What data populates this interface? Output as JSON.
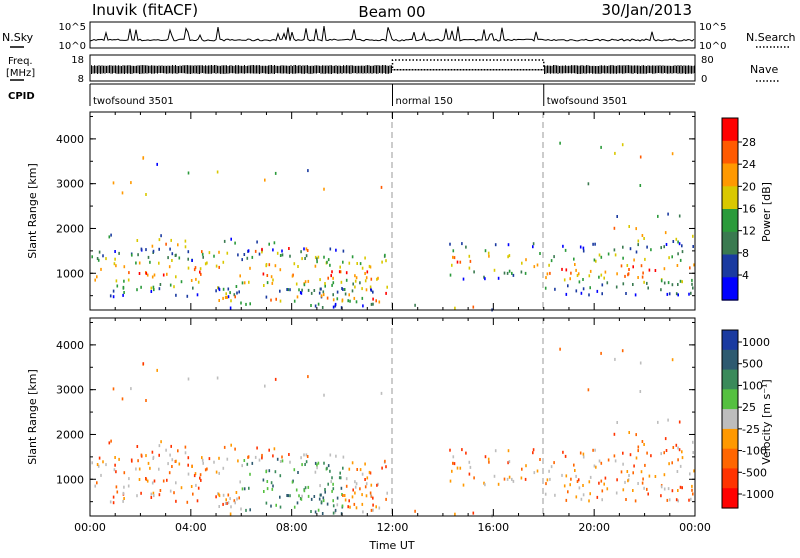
{
  "header": {
    "station": "Inuvik (fitACF)",
    "beam": "Beam 00",
    "date": "30/Jan/2013"
  },
  "top_panels": {
    "nsky_label": "N.Sky",
    "nsky_ticks": [
      "10^5",
      "10^0"
    ],
    "nsearch_label": "N.Search",
    "nsearch_ticks": [
      "10^5",
      "10^0"
    ],
    "freq_label_1": "Freq.",
    "freq_label_2": "[MHz]",
    "freq_ticks": [
      "18",
      "8"
    ],
    "nave_label": "Nave",
    "nave_ticks": [
      "80",
      "0"
    ],
    "cpid_label": "CPID",
    "cpid_segments": [
      {
        "name": "twofsound 3501",
        "start": 0,
        "end": 12
      },
      {
        "name": "normal 150",
        "start": 12,
        "end": 18
      },
      {
        "name": "twofsound 3501",
        "start": 18,
        "end": 24
      }
    ]
  },
  "chart_data": [
    {
      "type": "heatmap",
      "title": "",
      "ylabel": "Slant Range [km]",
      "ylim": [
        180,
        4600
      ],
      "xlim": [
        0,
        24
      ],
      "yticks": [
        "1000",
        "2000",
        "3000",
        "4000"
      ],
      "colorbar_label": "Power [dB]",
      "colorbar_ticks": [
        "28",
        "24",
        "20",
        "16",
        "12",
        "8",
        "4"
      ],
      "colorbar_colors": [
        "#ff0000",
        "#ff5a00",
        "#ff9900",
        "#d9c800",
        "#2a9a3a",
        "#3a7a50",
        "#1a3aa0",
        "#0000ff"
      ]
    },
    {
      "type": "heatmap",
      "title": "",
      "ylabel": "Slant Range [km]",
      "ylim": [
        180,
        4600
      ],
      "xlim": [
        0,
        24
      ],
      "yticks": [
        "1000",
        "2000",
        "3000",
        "4000"
      ],
      "xlabel": "Time UT",
      "xticks": [
        "00:00",
        "04:00",
        "08:00",
        "12:00",
        "16:00",
        "20:00",
        "00:00"
      ],
      "colorbar_label": "Velocity [m s⁻¹]",
      "colorbar_ticks": [
        "1000",
        "500",
        "100",
        "25",
        "-25",
        "-100",
        "-500",
        "-1000"
      ],
      "colorbar_colors": [
        "#1a3aa0",
        "#2e5a70",
        "#3a8a5a",
        "#55c040",
        "#bdbdbd",
        "#ff9900",
        "#ff6600",
        "#ff3300",
        "#ff0000"
      ]
    }
  ]
}
